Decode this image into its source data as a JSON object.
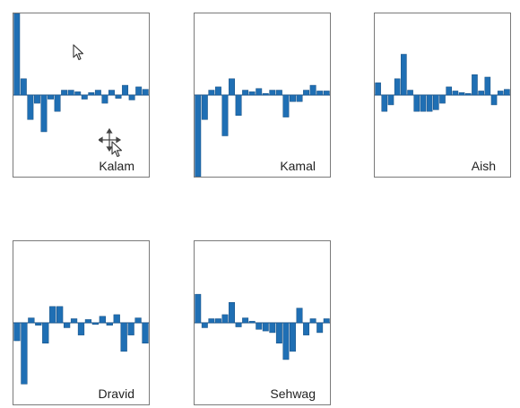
{
  "chart_data": [
    {
      "type": "bar",
      "name": "Kalam",
      "label": "Kalam",
      "ylim": [
        -1,
        1
      ],
      "values": [
        1.0,
        0.2,
        -0.3,
        -0.1,
        -0.45,
        -0.05,
        -0.2,
        0.06,
        0.06,
        0.04,
        -0.05,
        0.03,
        0.06,
        -0.1,
        0.06,
        -0.04,
        0.12,
        -0.06,
        0.1,
        0.07
      ]
    },
    {
      "type": "bar",
      "name": "Kamal",
      "label": "Kamal",
      "ylim": [
        -1,
        1
      ],
      "values": [
        -1.0,
        -0.3,
        0.06,
        0.1,
        -0.5,
        0.2,
        -0.25,
        0.06,
        0.04,
        0.08,
        0.02,
        0.06,
        0.06,
        -0.27,
        -0.08,
        -0.08,
        0.06,
        0.12,
        0.05,
        0.05
      ]
    },
    {
      "type": "bar",
      "name": "Aish",
      "label": "Aish",
      "ylim": [
        -1,
        1
      ],
      "values": [
        0.15,
        -0.2,
        -0.12,
        0.2,
        0.5,
        0.06,
        -0.2,
        -0.2,
        -0.2,
        -0.18,
        -0.1,
        0.1,
        0.05,
        0.03,
        0.02,
        0.25,
        0.05,
        0.22,
        -0.12,
        0.05,
        0.07
      ]
    },
    {
      "type": "bar",
      "name": "Dravid",
      "label": "Dravid",
      "ylim": [
        -1,
        1
      ],
      "values": [
        -0.22,
        -0.75,
        0.06,
        -0.03,
        -0.25,
        0.2,
        0.2,
        -0.06,
        0.05,
        -0.15,
        0.04,
        -0.02,
        0.08,
        -0.03,
        0.1,
        -0.35,
        -0.15,
        0.06,
        -0.25
      ]
    },
    {
      "type": "bar",
      "name": "Sehwag",
      "label": "Sehwag",
      "ylim": [
        -1,
        1
      ],
      "values": [
        0.35,
        -0.06,
        0.05,
        0.05,
        0.1,
        0.25,
        -0.05,
        0.06,
        0.02,
        -0.08,
        -0.1,
        -0.12,
        -0.25,
        -0.45,
        -0.35,
        0.18,
        -0.15,
        0.05,
        -0.12,
        0.05
      ]
    }
  ],
  "colors": {
    "bar": "#1f6fb4",
    "bar_edge": "#174f82",
    "axis": "#7a7a7a"
  },
  "icons": [
    "mouse-pointer-icon",
    "move-cursor-icon"
  ]
}
